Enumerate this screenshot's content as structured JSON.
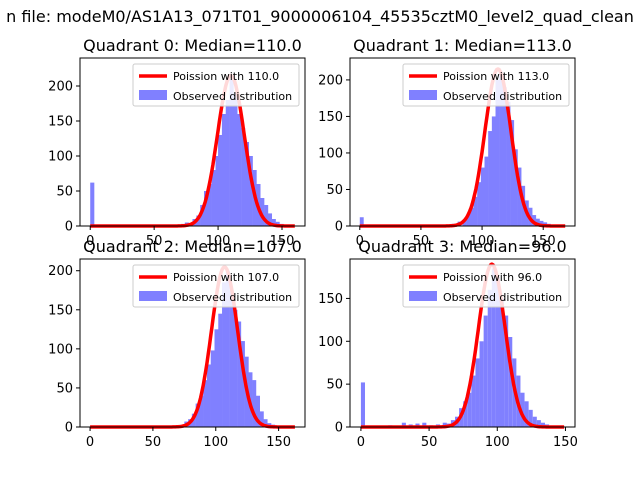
{
  "figure": {
    "suptitle": "n file: modeM0/AS1A13_071T01_9000006104_45535cztM0_level2_quad_clean"
  },
  "chart_data": [
    {
      "type": "histogram+line",
      "title": "Quadrant 0: Median=110.0",
      "xlim": [
        -8,
        168
      ],
      "ylim": [
        0,
        240
      ],
      "xticks": [
        0,
        50,
        100,
        150
      ],
      "yticks": [
        0,
        50,
        100,
        150,
        200
      ],
      "bin_width": 3.2,
      "hist": [
        [
          0,
          62
        ],
        [
          35,
          1
        ],
        [
          58,
          2
        ],
        [
          71,
          3
        ],
        [
          74,
          5
        ],
        [
          77,
          4
        ],
        [
          80,
          10
        ],
        [
          83,
          15
        ],
        [
          86,
          30
        ],
        [
          89,
          50
        ],
        [
          92,
          60
        ],
        [
          95,
          80
        ],
        [
          98,
          100
        ],
        [
          100,
          130
        ],
        [
          103,
          160
        ],
        [
          106,
          180
        ],
        [
          109,
          210
        ],
        [
          112,
          190
        ],
        [
          115,
          160
        ],
        [
          118,
          140
        ],
        [
          121,
          120
        ],
        [
          124,
          100
        ],
        [
          127,
          80
        ],
        [
          130,
          60
        ],
        [
          133,
          40
        ],
        [
          136,
          30
        ],
        [
          139,
          18
        ],
        [
          142,
          10
        ],
        [
          145,
          6
        ],
        [
          148,
          3
        ],
        [
          151,
          2
        ]
      ],
      "poisson_mean": 110.0,
      "poisson_peak": 215,
      "legend": [
        "Poission with 110.0",
        "Observed distribution"
      ]
    },
    {
      "type": "histogram+line",
      "title": "Quadrant 1: Median=113.0",
      "xlim": [
        -8,
        176
      ],
      "ylim": [
        0,
        230
      ],
      "xticks": [
        0,
        50,
        100,
        150
      ],
      "yticks": [
        0,
        50,
        100,
        150,
        200
      ],
      "bin_width": 3.2,
      "hist": [
        [
          0,
          12
        ],
        [
          40,
          1
        ],
        [
          45,
          1
        ],
        [
          55,
          2
        ],
        [
          60,
          2
        ],
        [
          70,
          2
        ],
        [
          75,
          3
        ],
        [
          80,
          6
        ],
        [
          84,
          8
        ],
        [
          87,
          15
        ],
        [
          90,
          25
        ],
        [
          93,
          40
        ],
        [
          96,
          60
        ],
        [
          99,
          80
        ],
        [
          102,
          95
        ],
        [
          105,
          130
        ],
        [
          108,
          150
        ],
        [
          111,
          200
        ],
        [
          114,
          210
        ],
        [
          117,
          190
        ],
        [
          120,
          170
        ],
        [
          123,
          145
        ],
        [
          126,
          105
        ],
        [
          129,
          80
        ],
        [
          132,
          55
        ],
        [
          135,
          35
        ],
        [
          138,
          25
        ],
        [
          141,
          15
        ],
        [
          144,
          10
        ],
        [
          147,
          7
        ],
        [
          150,
          5
        ],
        [
          153,
          3
        ],
        [
          156,
          2
        ]
      ],
      "poisson_mean": 113.0,
      "poisson_peak": 215,
      "legend": [
        "Poission with 113.0",
        "Observed distribution"
      ]
    },
    {
      "type": "histogram+line",
      "title": "Quadrant 2: Median=107.0",
      "xlim": [
        -8,
        171
      ],
      "ylim": [
        0,
        215
      ],
      "xticks": [
        0,
        50,
        100,
        150
      ],
      "yticks": [
        0,
        50,
        100,
        150,
        200
      ],
      "bin_width": 3.2,
      "hist": [
        [
          72,
          3
        ],
        [
          75,
          7
        ],
        [
          78,
          10
        ],
        [
          81,
          17
        ],
        [
          84,
          30
        ],
        [
          87,
          40
        ],
        [
          90,
          60
        ],
        [
          93,
          80
        ],
        [
          96,
          98
        ],
        [
          99,
          125
        ],
        [
          102,
          145
        ],
        [
          105,
          185
        ],
        [
          108,
          200
        ],
        [
          111,
          175
        ],
        [
          114,
          150
        ],
        [
          117,
          135
        ],
        [
          120,
          110
        ],
        [
          123,
          90
        ],
        [
          126,
          70
        ],
        [
          129,
          60
        ],
        [
          132,
          40
        ],
        [
          135,
          20
        ],
        [
          138,
          10
        ],
        [
          141,
          5
        ],
        [
          144,
          3
        ]
      ],
      "poisson_mean": 107.0,
      "poisson_peak": 205,
      "legend": [
        "Poission with 107.0",
        "Observed distribution"
      ]
    },
    {
      "type": "histogram+line",
      "title": "Quadrant 3: Median=96.0",
      "xlim": [
        -8,
        157
      ],
      "ylim": [
        0,
        196
      ],
      "xticks": [
        0,
        50,
        100,
        150
      ],
      "yticks": [
        0,
        50,
        100,
        150
      ],
      "bin_width": 3.0,
      "hist": [
        [
          0,
          52
        ],
        [
          20,
          2
        ],
        [
          30,
          5
        ],
        [
          35,
          3
        ],
        [
          40,
          4
        ],
        [
          45,
          5
        ],
        [
          50,
          2
        ],
        [
          55,
          3
        ],
        [
          60,
          5
        ],
        [
          63,
          4
        ],
        [
          66,
          8
        ],
        [
          69,
          12
        ],
        [
          72,
          22
        ],
        [
          75,
          30
        ],
        [
          78,
          40
        ],
        [
          81,
          60
        ],
        [
          84,
          80
        ],
        [
          87,
          100
        ],
        [
          90,
          130
        ],
        [
          93,
          160
        ],
        [
          96,
          185
        ],
        [
          99,
          175
        ],
        [
          102,
          150
        ],
        [
          105,
          130
        ],
        [
          108,
          105
        ],
        [
          111,
          80
        ],
        [
          114,
          60
        ],
        [
          117,
          40
        ],
        [
          120,
          30
        ],
        [
          123,
          20
        ],
        [
          126,
          12
        ],
        [
          129,
          8
        ],
        [
          132,
          5
        ],
        [
          135,
          3
        ]
      ],
      "poisson_mean": 96.0,
      "poisson_peak": 190,
      "legend": [
        "Poission with 96.0",
        "Observed distribution"
      ]
    }
  ],
  "colors": {
    "hist": "#8080ff",
    "poisson": "#ff0000",
    "axes": "#000000",
    "legend_border": "#cccccc"
  }
}
